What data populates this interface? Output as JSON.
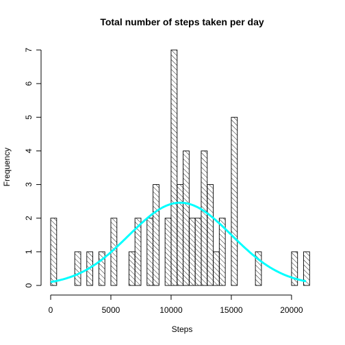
{
  "chart_data": {
    "type": "bar",
    "title": "Total number of steps taken per day",
    "xlabel": "Steps",
    "ylabel": "Frequency",
    "xlim": [
      0,
      21500
    ],
    "ylim": [
      0,
      7
    ],
    "x_ticks": [
      0,
      5000,
      10000,
      15000,
      20000
    ],
    "x_tick_labels": [
      "0",
      "5000",
      "10000",
      "15000",
      "20000"
    ],
    "y_ticks": [
      0,
      1,
      2,
      3,
      4,
      5,
      6,
      7
    ],
    "y_tick_labels": [
      "0",
      "1",
      "2",
      "3",
      "4",
      "5",
      "6",
      "7"
    ],
    "bin_width": 500,
    "bins": [
      {
        "start": 0,
        "count": 2
      },
      {
        "start": 2000,
        "count": 1
      },
      {
        "start": 3000,
        "count": 1
      },
      {
        "start": 4000,
        "count": 1
      },
      {
        "start": 5000,
        "count": 2
      },
      {
        "start": 6500,
        "count": 1
      },
      {
        "start": 7000,
        "count": 2
      },
      {
        "start": 8000,
        "count": 2
      },
      {
        "start": 8500,
        "count": 3
      },
      {
        "start": 9500,
        "count": 2
      },
      {
        "start": 10000,
        "count": 7
      },
      {
        "start": 10500,
        "count": 3
      },
      {
        "start": 11000,
        "count": 4
      },
      {
        "start": 11500,
        "count": 2
      },
      {
        "start": 12000,
        "count": 2
      },
      {
        "start": 12500,
        "count": 4
      },
      {
        "start": 13000,
        "count": 3
      },
      {
        "start": 13500,
        "count": 1
      },
      {
        "start": 14000,
        "count": 2
      },
      {
        "start": 15000,
        "count": 5
      },
      {
        "start": 17000,
        "count": 1
      },
      {
        "start": 20000,
        "count": 1
      },
      {
        "start": 21000,
        "count": 1
      }
    ],
    "density_curve": {
      "mean": 10766,
      "sd": 4269,
      "x_range": [
        0,
        21200
      ],
      "color": "#00ffff"
    },
    "bar_fill": "hatched",
    "grid": false
  }
}
